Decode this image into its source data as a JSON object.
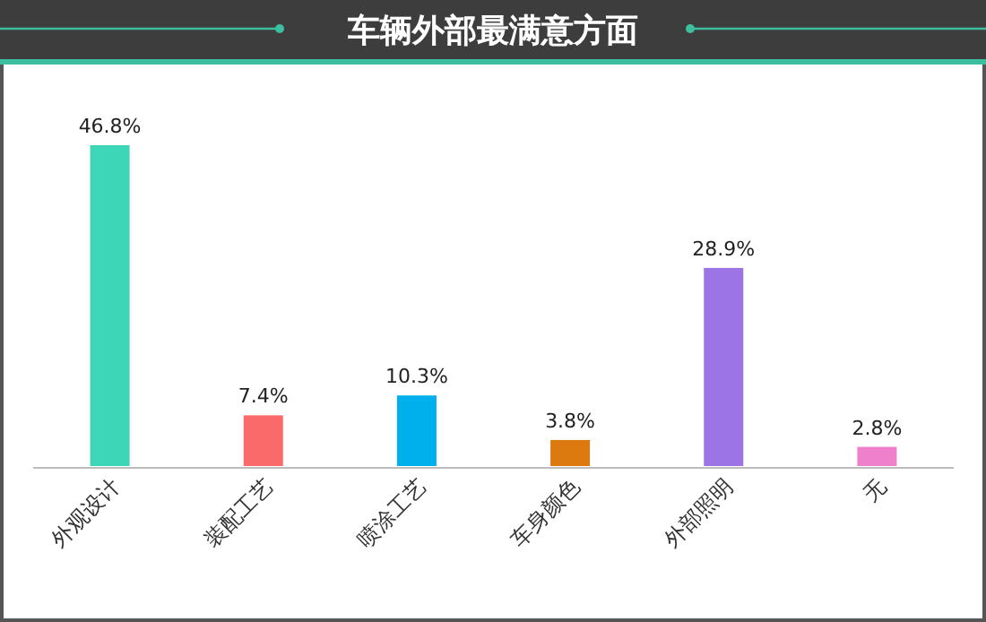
{
  "chart_data": {
    "type": "bar",
    "title": "车辆外部最满意方面",
    "categories": [
      "外观设计",
      "装配工艺",
      "喷涂工艺",
      "车身颜色",
      "外部照明",
      "无"
    ],
    "values": [
      46.8,
      7.4,
      10.3,
      3.8,
      28.9,
      2.8
    ],
    "value_labels": [
      "46.8%",
      "7.4%",
      "10.3%",
      "3.8%",
      "28.9%",
      "2.8%"
    ],
    "colors": [
      "#3dd6b6",
      "#fa6a6a",
      "#00b0ec",
      "#dc7a10",
      "#9d74e6",
      "#ee80cc"
    ]
  }
}
